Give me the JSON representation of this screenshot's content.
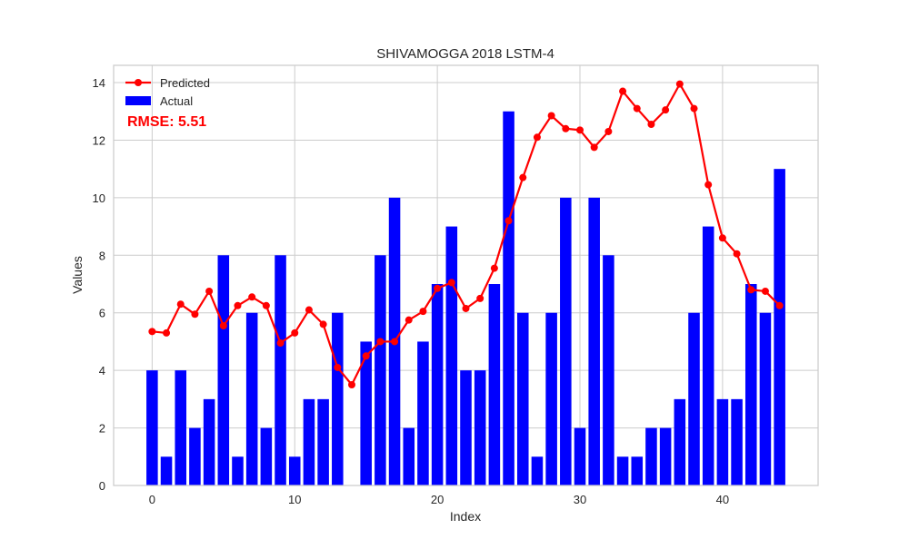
{
  "chart_data": {
    "type": "bar",
    "title": "SHIVAMOGGA 2018 LSTM-4",
    "xlabel": "Index",
    "ylabel": "Values",
    "xlim": [
      -2.7,
      46.7
    ],
    "ylim": [
      0,
      14.6
    ],
    "xticks": [
      0,
      10,
      20,
      30,
      40
    ],
    "yticks": [
      0,
      2,
      4,
      6,
      8,
      10,
      12,
      14
    ],
    "grid": true,
    "legend_position": "top-left",
    "annotation": "RMSE: 5.51",
    "x": [
      0,
      1,
      2,
      3,
      4,
      5,
      6,
      7,
      8,
      9,
      10,
      11,
      12,
      13,
      14,
      15,
      16,
      17,
      18,
      19,
      20,
      21,
      22,
      23,
      24,
      25,
      26,
      27,
      28,
      29,
      30,
      31,
      32,
      33,
      34,
      35,
      36,
      37,
      38,
      39,
      40,
      41,
      42,
      43,
      44
    ],
    "series": [
      {
        "name": "Actual",
        "kind": "bar",
        "color": "#0000ff",
        "values": [
          4,
          1,
          4,
          2,
          3,
          8,
          1,
          6,
          2,
          8,
          1,
          3,
          3,
          6,
          0,
          5,
          8,
          10,
          2,
          5,
          7,
          9,
          4,
          4,
          7,
          13,
          6,
          1,
          6,
          10,
          2,
          10,
          8,
          1,
          1,
          2,
          2,
          3,
          6,
          9,
          3,
          3,
          7,
          6,
          11
        ]
      },
      {
        "name": "Predicted",
        "kind": "line",
        "color": "#ff0000",
        "values": [
          5.35,
          5.3,
          6.3,
          5.95,
          6.75,
          5.55,
          6.25,
          6.55,
          6.25,
          4.95,
          5.3,
          6.1,
          5.6,
          4.1,
          3.5,
          4.5,
          5.0,
          5.0,
          5.75,
          6.05,
          6.85,
          7.05,
          6.15,
          6.5,
          7.55,
          9.2,
          10.7,
          12.1,
          12.85,
          12.4,
          12.35,
          11.75,
          12.3,
          13.7,
          13.1,
          12.55,
          13.05,
          13.95,
          13.1,
          10.45,
          8.6,
          8.05,
          6.8,
          6.75,
          6.25
        ]
      }
    ]
  }
}
